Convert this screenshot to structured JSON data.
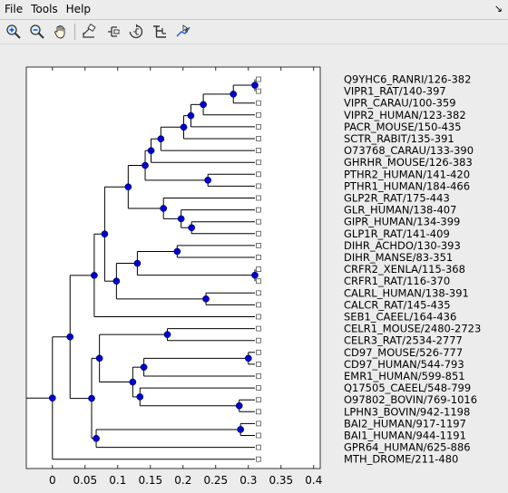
{
  "menu": {
    "file": "File",
    "tools": "Tools",
    "help": "Help",
    "dock_icon": "undock-arrow-icon"
  },
  "toolbar": {
    "buttons": [
      {
        "name": "zoom-in-icon"
      },
      {
        "name": "zoom-out-icon"
      },
      {
        "name": "pan-hand-icon"
      },
      {
        "name": "prune-tool-icon"
      },
      {
        "name": "collapse-tool-icon"
      },
      {
        "name": "rotate-tool-icon"
      },
      {
        "name": "flip-tool-icon"
      },
      {
        "name": "data-cursor-icon"
      }
    ]
  },
  "colors": {
    "node": "#0000cc",
    "axes_bg": "#ffffff",
    "line": "#000000"
  },
  "chart_data": {
    "type": "dendrogram",
    "xlim": [
      -0.04,
      0.41
    ],
    "ticks": [
      "0",
      "0.05",
      "0.1",
      "0.15",
      "0.2",
      "0.25",
      "0.3",
      "0.35",
      "0.4"
    ],
    "tick_values": [
      0,
      0.05,
      0.1,
      0.15,
      0.2,
      0.25,
      0.3,
      0.35,
      0.4
    ],
    "leaves": [
      "Q9YHC6_RANRI/126-382",
      "VIPR1_RAT/140-397",
      "VIPR_CARAU/100-359",
      "VIPR2_HUMAN/123-382",
      "PACR_MOUSE/150-435",
      "SCTR_RABIT/135-391",
      "O73768_CARAU/133-390",
      "GHRHR_MOUSE/126-383",
      "PTHR2_HUMAN/141-420",
      "PTHR1_HUMAN/184-466",
      "GLP2R_RAT/175-443",
      "GLR_HUMAN/138-407",
      "GIPR_HUMAN/134-399",
      "GLP1R_RAT/141-409",
      "DIHR_ACHDO/130-393",
      "DIHR_MANSE/83-351",
      "CRFR2_XENLA/115-368",
      "CRFR1_RAT/116-370",
      "CALRL_HUMAN/138-391",
      "CALCR_RAT/145-435",
      "SEB1_CAEEL/164-436",
      "CELR1_MOUSE/2480-2723",
      "CELR3_RAT/2534-2777",
      "CD97_MOUSE/526-777",
      "CD97_HUMAN/544-793",
      "EMR1_HUMAN/599-851",
      "Q17505_CAEEL/548-799",
      "O97802_BOVIN/769-1016",
      "LPHN3_BOVIN/942-1198",
      "BAI2_HUMAN/917-1197",
      "BAI1_HUMAN/944-1191",
      "GPR64_HUMAN/625-886",
      "MTH_DROME/211-480"
    ],
    "leaf_x": [
      0.31,
      0.31,
      0.31,
      0.31,
      0.31,
      0.31,
      0.31,
      0.31,
      0.31,
      0.31,
      0.31,
      0.31,
      0.31,
      0.31,
      0.31,
      0.31,
      0.31,
      0.31,
      0.31,
      0.31,
      0.31,
      0.31,
      0.31,
      0.31,
      0.31,
      0.31,
      0.31,
      0.31,
      0.31,
      0.31,
      0.31,
      0.31,
      0.31
    ],
    "nodes": [
      {
        "children": [
          "L0",
          "L1"
        ],
        "x": 0.31
      },
      {
        "children": [
          "N0",
          "L2"
        ],
        "x": 0.277
      },
      {
        "children": [
          "N1",
          "L3"
        ],
        "x": 0.231
      },
      {
        "children": [
          "N2",
          "L4"
        ],
        "x": 0.212
      },
      {
        "children": [
          "N3",
          "L5"
        ],
        "x": 0.201
      },
      {
        "children": [
          "N4",
          "L6"
        ],
        "x": 0.166
      },
      {
        "children": [
          "N5",
          "L7"
        ],
        "x": 0.151
      },
      {
        "children": [
          "L8",
          "L9"
        ],
        "x": 0.238
      },
      {
        "children": [
          "N6",
          "N7"
        ],
        "x": 0.142
      },
      {
        "children": [
          "L12",
          "L13"
        ],
        "x": 0.213
      },
      {
        "children": [
          "N9",
          "L11"
        ],
        "x": 0.197
      },
      {
        "children": [
          "N10",
          "L10"
        ],
        "x": 0.17
      },
      {
        "children": [
          "N8",
          "N11"
        ],
        "x": 0.116
      },
      {
        "children": [
          "L14",
          "L15"
        ],
        "x": 0.191
      },
      {
        "children": [
          "L16",
          "L17"
        ],
        "x": 0.31
      },
      {
        "children": [
          "N13",
          "N14"
        ],
        "x": 0.13
      },
      {
        "children": [
          "L18",
          "L19"
        ],
        "x": 0.235
      },
      {
        "children": [
          "N15",
          "N16"
        ],
        "x": 0.098
      },
      {
        "children": [
          "N12",
          "N17"
        ],
        "x": 0.08
      },
      {
        "children": [
          "N18",
          "L20"
        ],
        "x": 0.064
      },
      {
        "children": [
          "L21",
          "L22"
        ],
        "x": 0.176
      },
      {
        "children": [
          "L23",
          "L24"
        ],
        "x": 0.3
      },
      {
        "children": [
          "N21",
          "L25"
        ],
        "x": 0.14
      },
      {
        "children": [
          "L27",
          "L28"
        ],
        "x": 0.286
      },
      {
        "children": [
          "L26",
          "N23"
        ],
        "x": 0.134
      },
      {
        "children": [
          "N22",
          "N24"
        ],
        "x": 0.123
      },
      {
        "children": [
          "N20",
          "N25"
        ],
        "x": 0.072
      },
      {
        "children": [
          "L29",
          "L30"
        ],
        "x": 0.288
      },
      {
        "children": [
          "N27",
          "L31"
        ],
        "x": 0.067
      },
      {
        "children": [
          "N26",
          "N28"
        ],
        "x": 0.06
      },
      {
        "children": [
          "N19",
          "N29"
        ],
        "x": 0.027
      },
      {
        "children": [
          "N30",
          "L32"
        ],
        "x": 0.0
      }
    ]
  }
}
